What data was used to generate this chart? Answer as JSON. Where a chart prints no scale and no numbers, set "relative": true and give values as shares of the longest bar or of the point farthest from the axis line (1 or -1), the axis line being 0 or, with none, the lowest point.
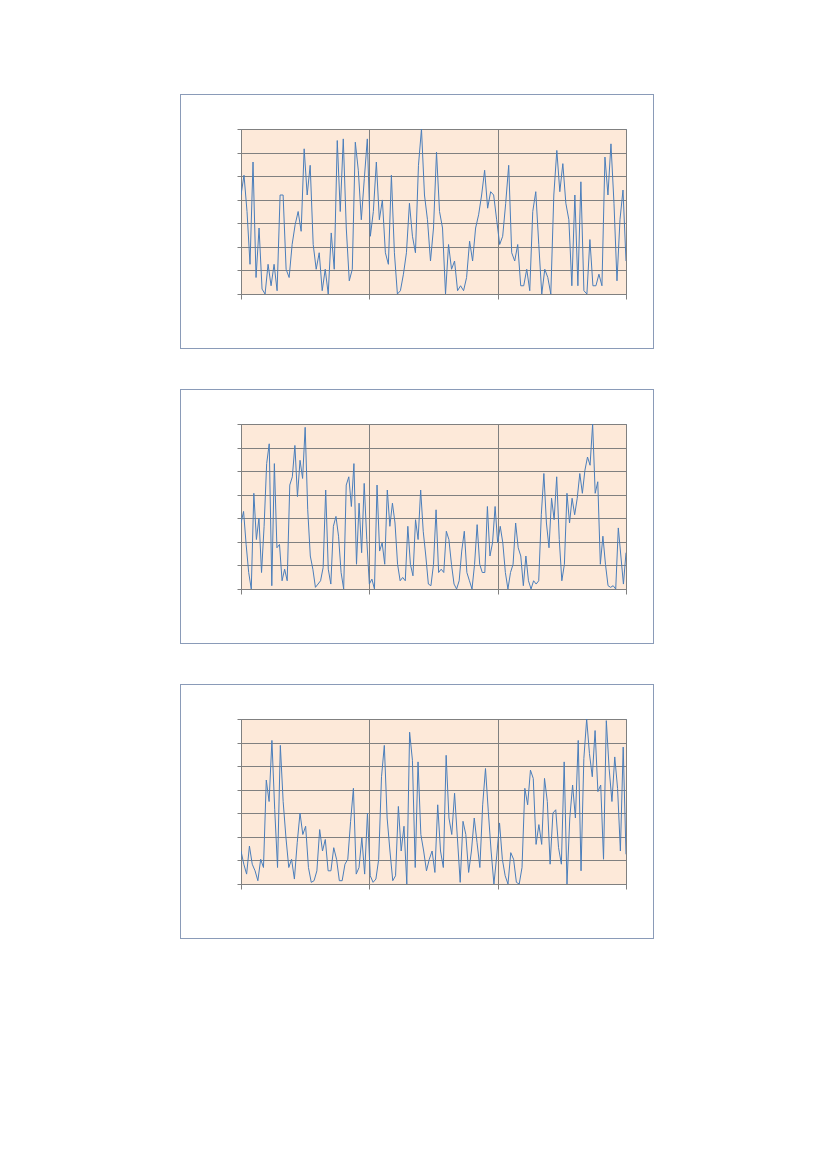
{
  "chart_data": [
    {
      "type": "line",
      "relative": true,
      "grid": true,
      "color": "#4a7ebb",
      "categories": [
        null,
        null,
        null,
        null,
        null,
        null,
        null,
        null,
        null,
        null,
        null,
        null,
        null,
        null,
        null,
        null,
        null,
        null,
        null,
        null,
        null,
        null,
        null,
        null,
        null,
        null,
        null,
        null,
        null,
        null,
        null,
        null,
        null,
        null,
        null,
        null,
        null,
        null,
        null,
        null,
        null,
        null,
        null,
        null,
        null,
        null,
        null,
        null,
        null,
        null,
        null,
        null,
        null,
        null,
        null,
        null,
        null,
        null,
        null,
        null,
        null,
        null,
        null,
        null,
        null,
        null,
        null,
        null,
        null,
        null,
        null,
        null,
        null,
        null,
        null,
        null,
        null,
        null,
        null,
        null,
        null,
        null,
        null,
        null,
        null,
        null,
        null,
        null,
        null,
        null,
        null,
        null,
        null,
        null,
        null,
        null,
        null,
        null,
        null,
        null,
        null,
        null,
        null,
        null,
        null,
        null,
        null,
        null,
        null,
        null,
        null,
        null,
        null,
        null,
        null,
        null,
        null,
        null,
        null,
        null,
        null,
        null,
        null,
        null,
        null,
        null,
        null,
        null,
        null
      ],
      "values": [
        0.6,
        0.72,
        0.5,
        0.18,
        0.8,
        0.1,
        0.4,
        0.03,
        0.0,
        0.18,
        0.05,
        0.18,
        0.02,
        0.6,
        0.6,
        0.15,
        0.1,
        0.3,
        0.42,
        0.5,
        0.38,
        0.88,
        0.6,
        0.78,
        0.3,
        0.15,
        0.25,
        0.02,
        0.15,
        0.0,
        0.37,
        0.15,
        0.93,
        0.5,
        0.94,
        0.4,
        0.08,
        0.15,
        0.92,
        0.75,
        0.45,
        0.7,
        0.94,
        0.35,
        0.5,
        0.8,
        0.45,
        0.57,
        0.25,
        0.18,
        0.72,
        0.25,
        0.0,
        0.02,
        0.12,
        0.25,
        0.55,
        0.35,
        0.25,
        0.78,
        1.0,
        0.6,
        0.45,
        0.2,
        0.4,
        0.86,
        0.5,
        0.4,
        0.0,
        0.3,
        0.15,
        0.2,
        0.02,
        0.05,
        0.02,
        0.1,
        0.32,
        0.2,
        0.4,
        0.48,
        0.6,
        0.75,
        0.52,
        0.62,
        0.6,
        0.45,
        0.3,
        0.35,
        0.55,
        0.78,
        0.25,
        0.2,
        0.3,
        0.05,
        0.05,
        0.15,
        0.02,
        0.5,
        0.62,
        0.3,
        0.0,
        0.15,
        0.1,
        0.0,
        0.6,
        0.87,
        0.62,
        0.79,
        0.55,
        0.45,
        0.05,
        0.6,
        0.05,
        0.68,
        0.02,
        0.0,
        0.33,
        0.05,
        0.05,
        0.12,
        0.05,
        0.83,
        0.6,
        0.91,
        0.55,
        0.08,
        0.45,
        0.63,
        0.2
      ]
    },
    {
      "type": "line",
      "relative": true,
      "grid": true,
      "color": "#4a7ebb",
      "categories": [
        null,
        null,
        null,
        null,
        null,
        null,
        null,
        null,
        null,
        null,
        null,
        null,
        null,
        null,
        null,
        null,
        null,
        null,
        null,
        null,
        null,
        null,
        null,
        null,
        null,
        null,
        null,
        null,
        null,
        null,
        null,
        null,
        null,
        null,
        null,
        null,
        null,
        null,
        null,
        null,
        null,
        null,
        null,
        null,
        null,
        null,
        null,
        null,
        null,
        null,
        null,
        null,
        null,
        null,
        null,
        null,
        null,
        null,
        null,
        null,
        null,
        null,
        null,
        null,
        null,
        null,
        null,
        null,
        null,
        null,
        null,
        null,
        null,
        null,
        null,
        null,
        null,
        null,
        null,
        null,
        null,
        null,
        null,
        null,
        null,
        null,
        null,
        null,
        null,
        null,
        null,
        null,
        null,
        null,
        null,
        null,
        null,
        null,
        null,
        null,
        null,
        null,
        null,
        null,
        null,
        null,
        null,
        null,
        null,
        null,
        null,
        null,
        null,
        null,
        null,
        null,
        null,
        null,
        null,
        null,
        null,
        null,
        null,
        null,
        null,
        null,
        null,
        null,
        null,
        null,
        null,
        null,
        null,
        null,
        null,
        null,
        null,
        null,
        null,
        null,
        null,
        null,
        null,
        null,
        null,
        null,
        null,
        null,
        null,
        null,
        null
      ],
      "values": [
        0.4,
        0.47,
        0.27,
        0.1,
        0.0,
        0.58,
        0.3,
        0.43,
        0.1,
        0.38,
        0.76,
        0.88,
        0.02,
        0.76,
        0.25,
        0.27,
        0.05,
        0.12,
        0.05,
        0.63,
        0.68,
        0.87,
        0.56,
        0.78,
        0.67,
        0.98,
        0.48,
        0.2,
        0.12,
        0.01,
        0.03,
        0.05,
        0.13,
        0.6,
        0.12,
        0.03,
        0.38,
        0.44,
        0.32,
        0.1,
        0.0,
        0.63,
        0.68,
        0.5,
        0.76,
        0.15,
        0.52,
        0.22,
        0.64,
        0.3,
        0.03,
        0.06,
        0.0,
        0.63,
        0.23,
        0.28,
        0.15,
        0.6,
        0.38,
        0.52,
        0.4,
        0.15,
        0.05,
        0.07,
        0.05,
        0.38,
        0.15,
        0.08,
        0.42,
        0.3,
        0.6,
        0.35,
        0.2,
        0.03,
        0.02,
        0.15,
        0.48,
        0.1,
        0.12,
        0.1,
        0.35,
        0.3,
        0.15,
        0.03,
        0.0,
        0.05,
        0.23,
        0.35,
        0.1,
        0.05,
        0.0,
        0.15,
        0.39,
        0.15,
        0.1,
        0.1,
        0.5,
        0.2,
        0.28,
        0.5,
        0.28,
        0.38,
        0.28,
        0.1,
        0.0,
        0.1,
        0.15,
        0.4,
        0.25,
        0.2,
        0.02,
        0.2,
        0.05,
        0.0,
        0.05,
        0.03,
        0.05,
        0.45,
        0.7,
        0.4,
        0.25,
        0.55,
        0.42,
        0.68,
        0.3,
        0.05,
        0.15,
        0.58,
        0.4,
        0.55,
        0.45,
        0.55,
        0.7,
        0.58,
        0.72,
        0.8,
        0.75,
        1.0,
        0.58,
        0.65,
        0.15,
        0.32,
        0.15,
        0.02,
        0.01,
        0.02,
        0.0,
        0.37,
        0.2,
        0.03,
        0.22
      ]
    },
    {
      "type": "line",
      "relative": true,
      "grid": true,
      "color": "#4a7ebb",
      "categories": [
        null,
        null,
        null,
        null,
        null,
        null,
        null,
        null,
        null,
        null,
        null,
        null,
        null,
        null,
        null,
        null,
        null,
        null,
        null,
        null,
        null,
        null,
        null,
        null,
        null,
        null,
        null,
        null,
        null,
        null,
        null,
        null,
        null,
        null,
        null,
        null,
        null,
        null,
        null,
        null,
        null,
        null,
        null,
        null,
        null,
        null,
        null,
        null,
        null,
        null,
        null,
        null,
        null,
        null,
        null,
        null,
        null,
        null,
        null,
        null,
        null,
        null,
        null,
        null,
        null,
        null,
        null,
        null,
        null,
        null,
        null,
        null,
        null,
        null,
        null,
        null,
        null,
        null,
        null,
        null,
        null,
        null,
        null,
        null,
        null,
        null,
        null,
        null,
        null,
        null,
        null,
        null,
        null,
        null,
        null,
        null,
        null,
        null,
        null,
        null,
        null,
        null,
        null,
        null,
        null,
        null,
        null,
        null,
        null,
        null,
        null,
        null,
        null,
        null,
        null,
        null,
        null,
        null,
        null,
        null,
        null,
        null,
        null,
        null,
        null,
        null,
        null,
        null,
        null,
        null,
        null,
        null,
        null,
        null,
        null,
        null,
        null,
        null
      ],
      "values": [
        0.2,
        0.12,
        0.06,
        0.23,
        0.12,
        0.08,
        0.02,
        0.15,
        0.1,
        0.63,
        0.5,
        0.87,
        0.45,
        0.1,
        0.84,
        0.5,
        0.28,
        0.1,
        0.15,
        0.03,
        0.25,
        0.43,
        0.3,
        0.35,
        0.1,
        0.01,
        0.02,
        0.08,
        0.33,
        0.2,
        0.27,
        0.08,
        0.08,
        0.22,
        0.15,
        0.02,
        0.02,
        0.12,
        0.15,
        0.38,
        0.58,
        0.06,
        0.1,
        0.28,
        0.06,
        0.43,
        0.05,
        0.01,
        0.03,
        0.15,
        0.65,
        0.84,
        0.4,
        0.2,
        0.02,
        0.05,
        0.47,
        0.2,
        0.35,
        0.0,
        0.92,
        0.75,
        0.1,
        0.74,
        0.3,
        0.2,
        0.08,
        0.15,
        0.2,
        0.07,
        0.48,
        0.2,
        0.1,
        0.78,
        0.4,
        0.3,
        0.55,
        0.28,
        0.01,
        0.38,
        0.3,
        0.07,
        0.2,
        0.4,
        0.25,
        0.1,
        0.48,
        0.7,
        0.44,
        0.2,
        0.0,
        0.17,
        0.37,
        0.15,
        0.05,
        0.0,
        0.19,
        0.15,
        0.01,
        0.0,
        0.1,
        0.58,
        0.48,
        0.69,
        0.64,
        0.24,
        0.36,
        0.24,
        0.64,
        0.5,
        0.12,
        0.43,
        0.45,
        0.22,
        0.12,
        0.74,
        0.0,
        0.4,
        0.6,
        0.4,
        0.87,
        0.08,
        0.76,
        1.0,
        0.79,
        0.65,
        0.93,
        0.56,
        0.6,
        0.15,
        0.99,
        0.7,
        0.5,
        0.77,
        0.58,
        0.2,
        0.83,
        0.18
      ]
    }
  ]
}
